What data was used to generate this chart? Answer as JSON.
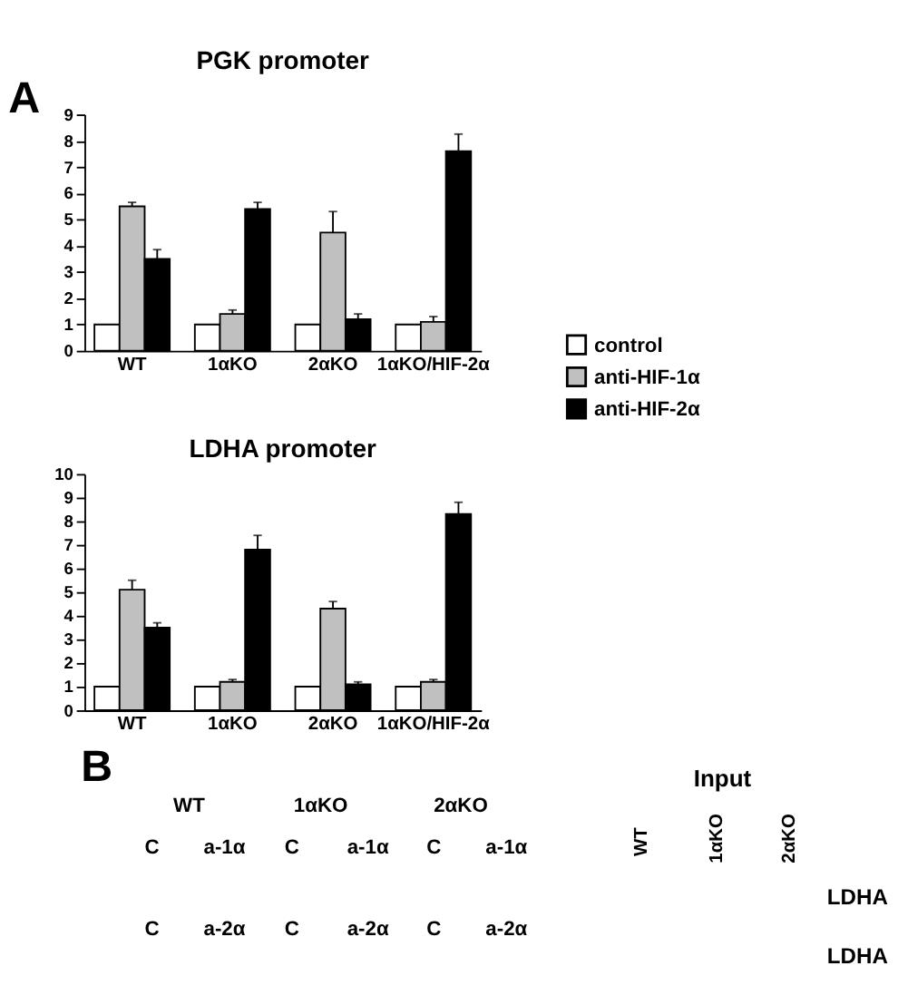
{
  "chart_data": [
    {
      "type": "bar",
      "title": "PGK promoter",
      "categories": [
        "WT",
        "1αKO",
        "2αKO",
        "1αKO/HIF-2α"
      ],
      "ylim": [
        0,
        9
      ],
      "yticks": [
        0,
        1,
        2,
        3,
        4,
        5,
        6,
        7,
        8,
        9
      ],
      "grid": false,
      "legend": "right",
      "annotations": [
        "A"
      ],
      "series": [
        {
          "name": "control",
          "color": "#ffffff",
          "values": [
            1,
            1,
            1,
            1
          ]
        },
        {
          "name": "anti-HIF-1α",
          "color": "#c0c0c0",
          "values": [
            5.5,
            1.4,
            4.5,
            1.1
          ],
          "errors": [
            [
              5.5,
              5.65
            ],
            [
              1.4,
              1.55
            ],
            [
              4.5,
              5.3
            ],
            [
              1.1,
              1.3
            ]
          ]
        },
        {
          "name": "anti-HIF-2α",
          "color": "#000000",
          "values": [
            3.5,
            5.4,
            1.2,
            7.6
          ],
          "errors": [
            [
              3.5,
              3.85
            ],
            [
              5.4,
              5.65
            ],
            [
              1.2,
              1.4
            ],
            [
              7.6,
              8.25
            ]
          ]
        }
      ]
    },
    {
      "type": "bar",
      "title": "LDHA promoter",
      "categories": [
        "WT",
        "1αKO",
        "2αKO",
        "1αKO/HIF-2α"
      ],
      "ylim": [
        0,
        10
      ],
      "yticks": [
        0,
        1,
        2,
        3,
        4,
        5,
        6,
        7,
        8,
        9,
        10
      ],
      "grid": false,
      "legend": false,
      "series": [
        {
          "color": "#ffffff",
          "values": [
            1,
            1,
            1,
            1
          ]
        },
        {
          "color": "#c0c0c0",
          "values": [
            5.1,
            1.2,
            4.3,
            1.2
          ],
          "errors": [
            [
              5.1,
              5.5
            ],
            [
              1.2,
              1.3
            ],
            [
              4.3,
              4.6
            ],
            [
              1.2,
              1.3
            ]
          ]
        },
        {
          "color": "#000000",
          "values": [
            3.5,
            6.8,
            1.1,
            8.3
          ],
          "errors": [
            [
              3.5,
              3.7
            ],
            [
              6.8,
              7.4
            ],
            [
              1.1,
              1.2
            ],
            [
              8.3,
              8.8
            ]
          ]
        }
      ]
    },
    {
      "type": "other",
      "annotations": [
        "B",
        "WT",
        "1αKO",
        "2αKO",
        "Input",
        "C",
        "a-1α",
        "C",
        "a-1α",
        "C",
        "a-1α",
        "WT",
        "1αKO",
        "2αKO",
        "LDHA",
        "C",
        "a-2α",
        "C",
        "a-2α",
        "C",
        "a-2α",
        "LDHA"
      ]
    }
  ]
}
